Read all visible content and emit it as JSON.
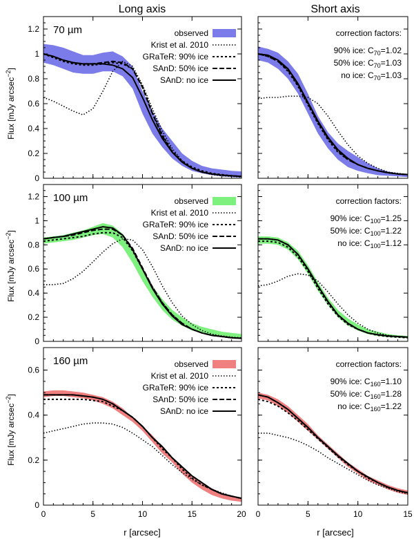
{
  "column_titles": [
    "Long axis",
    "Short axis"
  ],
  "y_label_main": "Flux [mJy arcsec",
  "y_label_sup": "−2",
  "y_label_end": "]",
  "x_label": "r [arcsec]",
  "legend_labels": [
    "observed",
    "Krist et al. 2010",
    "GRaTeR: 90% ice",
    "SAnD: 50% ice",
    "SAnD: no ice"
  ],
  "correction_heading": "correction factors:",
  "chart_data": [
    {
      "type": "line",
      "panel": "long-axis-70",
      "band_label": "70 µm",
      "band_color": "#7b7bea",
      "xlim": [
        0,
        20
      ],
      "ylim": [
        0,
        1.3
      ],
      "xticks": [
        "0",
        "5",
        "10",
        "15",
        "20"
      ],
      "yticks": [
        "0",
        "0.2",
        "0.4",
        "0.6",
        "0.8",
        "1",
        "1.2"
      ],
      "show_xticks": false,
      "x": [
        0,
        1,
        2,
        3,
        4,
        5,
        6,
        7,
        8,
        9,
        10,
        11,
        12,
        13,
        14,
        15,
        16,
        17,
        18,
        19,
        20
      ],
      "observed_low": [
        0.93,
        0.91,
        0.88,
        0.85,
        0.84,
        0.84,
        0.86,
        0.86,
        0.82,
        0.72,
        0.52,
        0.36,
        0.25,
        0.16,
        0.1,
        0.06,
        0.04,
        0.025,
        0.015,
        0.01,
        0.005
      ],
      "observed_high": [
        1.08,
        1.07,
        1.05,
        1.02,
        0.99,
        0.99,
        1.01,
        1.02,
        0.98,
        0.9,
        0.7,
        0.54,
        0.4,
        0.3,
        0.2,
        0.14,
        0.1,
        0.08,
        0.07,
        0.06,
        0.055
      ],
      "series": [
        {
          "name": "Krist et al. 2010",
          "style": "krist",
          "values": [
            0.65,
            0.62,
            0.58,
            0.54,
            0.51,
            0.56,
            0.7,
            0.86,
            0.94,
            0.9,
            0.75,
            0.56,
            0.38,
            0.24,
            0.14,
            0.08,
            0.05,
            0.03,
            0.02,
            0.015,
            0.01
          ]
        },
        {
          "name": "GRaTeR: 90% ice",
          "style": "grater",
          "values": [
            1.0,
            0.97,
            0.94,
            0.92,
            0.91,
            0.91,
            0.92,
            0.93,
            0.92,
            0.88,
            0.74,
            0.53,
            0.35,
            0.22,
            0.14,
            0.09,
            0.06,
            0.04,
            0.03,
            0.02,
            0.015
          ]
        },
        {
          "name": "SAnD: 50% ice",
          "style": "sand50",
          "values": [
            1.0,
            0.98,
            0.95,
            0.93,
            0.92,
            0.92,
            0.93,
            0.94,
            0.93,
            0.88,
            0.73,
            0.52,
            0.34,
            0.21,
            0.13,
            0.08,
            0.05,
            0.035,
            0.025,
            0.02,
            0.015
          ]
        },
        {
          "name": "SAnD: no ice",
          "style": "sandno",
          "values": [
            1.0,
            0.98,
            0.95,
            0.93,
            0.92,
            0.92,
            0.92,
            0.91,
            0.88,
            0.81,
            0.65,
            0.47,
            0.32,
            0.21,
            0.13,
            0.08,
            0.05,
            0.035,
            0.025,
            0.02,
            0.015
          ]
        }
      ]
    },
    {
      "type": "line",
      "panel": "short-axis-70",
      "band_color": "#7b7bea",
      "xlim": [
        0,
        15
      ],
      "ylim": [
        0,
        1.3
      ],
      "xticks": [
        "0",
        "5",
        "10",
        "15"
      ],
      "yticks": [],
      "show_xticks": false,
      "corrections": [
        {
          "pre": "90% ice: C",
          "sub": "70",
          "post": "=1.02"
        },
        {
          "pre": "50% ice: C",
          "sub": "70",
          "post": "=1.03"
        },
        {
          "pre": "no ice: C",
          "sub": "70",
          "post": "=1.03"
        }
      ],
      "x": [
        0,
        1,
        2,
        3,
        4,
        5,
        6,
        7,
        8,
        9,
        10,
        11,
        12,
        13,
        14,
        15
      ],
      "observed_low": [
        0.95,
        0.93,
        0.88,
        0.8,
        0.68,
        0.52,
        0.36,
        0.24,
        0.15,
        0.09,
        0.06,
        0.04,
        0.025,
        0.02,
        0.015,
        0.01
      ],
      "observed_high": [
        1.06,
        1.04,
        1.01,
        0.94,
        0.84,
        0.68,
        0.5,
        0.37,
        0.28,
        0.22,
        0.17,
        0.12,
        0.08,
        0.055,
        0.04,
        0.035
      ],
      "series": [
        {
          "name": "Krist et al. 2010",
          "style": "krist",
          "values": [
            0.64,
            0.65,
            0.65,
            0.66,
            0.66,
            0.65,
            0.6,
            0.5,
            0.38,
            0.27,
            0.18,
            0.12,
            0.08,
            0.05,
            0.04,
            0.03
          ]
        },
        {
          "name": "GRaTeR: 90% ice",
          "style": "grater",
          "values": [
            1.0,
            0.98,
            0.94,
            0.86,
            0.74,
            0.59,
            0.44,
            0.31,
            0.21,
            0.15,
            0.11,
            0.08,
            0.06,
            0.045,
            0.035,
            0.03
          ]
        },
        {
          "name": "SAnD: 50% ice",
          "style": "sand50",
          "values": [
            1.0,
            0.98,
            0.94,
            0.87,
            0.75,
            0.6,
            0.45,
            0.32,
            0.22,
            0.15,
            0.11,
            0.08,
            0.06,
            0.045,
            0.035,
            0.03
          ]
        },
        {
          "name": "SAnD: no ice",
          "style": "sandno",
          "values": [
            1.0,
            0.99,
            0.95,
            0.88,
            0.76,
            0.61,
            0.46,
            0.33,
            0.23,
            0.16,
            0.11,
            0.08,
            0.06,
            0.045,
            0.035,
            0.03
          ]
        }
      ]
    },
    {
      "type": "line",
      "panel": "long-axis-100",
      "band_label": "100 µm",
      "band_color": "#7ef07e",
      "xlim": [
        0,
        20
      ],
      "ylim": [
        0,
        1.3
      ],
      "xticks": [
        "0",
        "5",
        "10",
        "15",
        "20"
      ],
      "yticks": [
        "0",
        "0.2",
        "0.4",
        "0.6",
        "0.8",
        "1",
        "1.2"
      ],
      "show_xticks": false,
      "x": [
        0,
        1,
        2,
        3,
        4,
        5,
        6,
        7,
        8,
        9,
        10,
        11,
        12,
        13,
        14,
        15,
        16,
        17,
        18,
        19,
        20
      ],
      "observed_low": [
        0.81,
        0.82,
        0.83,
        0.84,
        0.86,
        0.88,
        0.89,
        0.86,
        0.78,
        0.65,
        0.5,
        0.37,
        0.26,
        0.18,
        0.13,
        0.09,
        0.07,
        0.05,
        0.04,
        0.03,
        0.02
      ],
      "observed_high": [
        0.86,
        0.87,
        0.88,
        0.9,
        0.92,
        0.95,
        0.98,
        0.96,
        0.89,
        0.76,
        0.6,
        0.46,
        0.35,
        0.26,
        0.2,
        0.15,
        0.12,
        0.1,
        0.08,
        0.07,
        0.06
      ],
      "series": [
        {
          "name": "Krist et al. 2010",
          "style": "krist",
          "values": [
            0.47,
            0.47,
            0.48,
            0.52,
            0.58,
            0.66,
            0.74,
            0.81,
            0.85,
            0.84,
            0.76,
            0.62,
            0.46,
            0.32,
            0.21,
            0.14,
            0.09,
            0.06,
            0.045,
            0.035,
            0.03
          ]
        },
        {
          "name": "GRaTeR: 90% ice",
          "style": "grater",
          "values": [
            0.83,
            0.84,
            0.85,
            0.86,
            0.87,
            0.89,
            0.9,
            0.9,
            0.86,
            0.75,
            0.6,
            0.45,
            0.32,
            0.22,
            0.15,
            0.1,
            0.07,
            0.05,
            0.04,
            0.03,
            0.025
          ]
        },
        {
          "name": "SAnD: 50% ice",
          "style": "sand50",
          "values": [
            0.85,
            0.86,
            0.87,
            0.88,
            0.9,
            0.92,
            0.93,
            0.93,
            0.88,
            0.77,
            0.61,
            0.45,
            0.32,
            0.22,
            0.15,
            0.1,
            0.07,
            0.05,
            0.04,
            0.03,
            0.025
          ]
        },
        {
          "name": "SAnD: no ice",
          "style": "sandno",
          "values": [
            0.85,
            0.86,
            0.87,
            0.89,
            0.91,
            0.93,
            0.95,
            0.94,
            0.88,
            0.76,
            0.6,
            0.44,
            0.31,
            0.21,
            0.14,
            0.1,
            0.07,
            0.05,
            0.04,
            0.03,
            0.025
          ]
        }
      ]
    },
    {
      "type": "line",
      "panel": "short-axis-100",
      "band_color": "#7ef07e",
      "xlim": [
        0,
        15
      ],
      "ylim": [
        0,
        1.3
      ],
      "xticks": [
        "0",
        "5",
        "10",
        "15"
      ],
      "yticks": [],
      "show_xticks": false,
      "corrections": [
        {
          "pre": "90% ice: C",
          "sub": "100",
          "post": "=1.25"
        },
        {
          "pre": "50% ice: C",
          "sub": "100",
          "post": "=1.22"
        },
        {
          "pre": "no ice: C",
          "sub": "100",
          "post": "=1.12"
        }
      ],
      "x": [
        0,
        1,
        2,
        3,
        4,
        5,
        6,
        7,
        8,
        9,
        10,
        11,
        12,
        13,
        14,
        15
      ],
      "observed_low": [
        0.81,
        0.81,
        0.8,
        0.76,
        0.68,
        0.56,
        0.42,
        0.3,
        0.2,
        0.13,
        0.09,
        0.06,
        0.045,
        0.035,
        0.03,
        0.025
      ],
      "observed_high": [
        0.87,
        0.87,
        0.86,
        0.82,
        0.75,
        0.63,
        0.49,
        0.36,
        0.26,
        0.19,
        0.14,
        0.1,
        0.08,
        0.06,
        0.05,
        0.045
      ],
      "series": [
        {
          "name": "Krist et al. 2010",
          "style": "krist",
          "values": [
            0.46,
            0.47,
            0.5,
            0.54,
            0.56,
            0.55,
            0.5,
            0.41,
            0.31,
            0.22,
            0.15,
            0.1,
            0.07,
            0.05,
            0.04,
            0.035
          ]
        },
        {
          "name": "GRaTeR: 90% ice",
          "style": "grater",
          "values": [
            0.83,
            0.83,
            0.82,
            0.78,
            0.7,
            0.58,
            0.44,
            0.31,
            0.21,
            0.14,
            0.1,
            0.07,
            0.05,
            0.04,
            0.035,
            0.03
          ]
        },
        {
          "name": "SAnD: 50% ice",
          "style": "sand50",
          "values": [
            0.85,
            0.85,
            0.84,
            0.8,
            0.72,
            0.6,
            0.46,
            0.33,
            0.22,
            0.15,
            0.1,
            0.07,
            0.055,
            0.045,
            0.04,
            0.035
          ]
        },
        {
          "name": "SAnD: no ice",
          "style": "sandno",
          "values": [
            0.85,
            0.85,
            0.84,
            0.8,
            0.72,
            0.6,
            0.46,
            0.33,
            0.22,
            0.15,
            0.1,
            0.07,
            0.055,
            0.045,
            0.04,
            0.035
          ]
        }
      ]
    },
    {
      "type": "line",
      "panel": "long-axis-160",
      "band_label": "160 µm",
      "band_color": "#f08080",
      "xlim": [
        0,
        20
      ],
      "ylim": [
        0,
        0.7
      ],
      "xticks": [
        "0",
        "5",
        "10",
        "15",
        "20"
      ],
      "yticks": [
        "0",
        "0.2",
        "0.4",
        "0.6"
      ],
      "show_xticks": true,
      "x": [
        0,
        1,
        2,
        3,
        4,
        5,
        6,
        7,
        8,
        9,
        10,
        11,
        12,
        13,
        14,
        15,
        16,
        17,
        18,
        19,
        20
      ],
      "observed_low": [
        0.48,
        0.485,
        0.485,
        0.48,
        0.475,
        0.465,
        0.45,
        0.43,
        0.4,
        0.37,
        0.33,
        0.28,
        0.23,
        0.19,
        0.14,
        0.1,
        0.07,
        0.045,
        0.03,
        0.02,
        0.015
      ],
      "observed_high": [
        0.505,
        0.51,
        0.51,
        0.505,
        0.5,
        0.49,
        0.48,
        0.46,
        0.43,
        0.39,
        0.35,
        0.31,
        0.26,
        0.21,
        0.17,
        0.13,
        0.1,
        0.075,
        0.055,
        0.04,
        0.035
      ],
      "series": [
        {
          "name": "Krist et al. 2010",
          "style": "krist",
          "values": [
            0.32,
            0.33,
            0.34,
            0.35,
            0.36,
            0.365,
            0.365,
            0.36,
            0.345,
            0.32,
            0.29,
            0.26,
            0.22,
            0.18,
            0.145,
            0.115,
            0.09,
            0.07,
            0.055,
            0.04,
            0.03
          ]
        },
        {
          "name": "GRaTeR: 90% ice",
          "style": "grater",
          "values": [
            0.47,
            0.47,
            0.47,
            0.47,
            0.47,
            0.465,
            0.46,
            0.44,
            0.42,
            0.39,
            0.35,
            0.3,
            0.25,
            0.21,
            0.16,
            0.12,
            0.09,
            0.07,
            0.05,
            0.04,
            0.03
          ]
        },
        {
          "name": "SAnD: 50% ice",
          "style": "sand50",
          "values": [
            0.49,
            0.49,
            0.49,
            0.49,
            0.485,
            0.48,
            0.47,
            0.45,
            0.42,
            0.39,
            0.35,
            0.3,
            0.26,
            0.21,
            0.17,
            0.13,
            0.1,
            0.07,
            0.05,
            0.04,
            0.03
          ]
        },
        {
          "name": "SAnD: no ice",
          "style": "sandno",
          "values": [
            0.49,
            0.49,
            0.49,
            0.49,
            0.485,
            0.48,
            0.47,
            0.45,
            0.42,
            0.39,
            0.35,
            0.3,
            0.26,
            0.21,
            0.17,
            0.13,
            0.1,
            0.07,
            0.05,
            0.04,
            0.03
          ]
        }
      ]
    },
    {
      "type": "line",
      "panel": "short-axis-160",
      "band_color": "#f08080",
      "xlim": [
        0,
        15
      ],
      "ylim": [
        0,
        0.7
      ],
      "xticks": [
        "0",
        "5",
        "10",
        "15"
      ],
      "yticks": [],
      "show_xticks": true,
      "corrections": [
        {
          "pre": "90% ice: C",
          "sub": "160",
          "post": "=1.10"
        },
        {
          "pre": "50% ice: C",
          "sub": "160",
          "post": "=1.28"
        },
        {
          "pre": "no ice: C",
          "sub": "160",
          "post": "=1.22"
        }
      ],
      "x": [
        0,
        1,
        2,
        3,
        4,
        5,
        6,
        7,
        8,
        9,
        10,
        11,
        12,
        13,
        14,
        15
      ],
      "observed_low": [
        0.475,
        0.465,
        0.44,
        0.41,
        0.37,
        0.33,
        0.29,
        0.25,
        0.21,
        0.17,
        0.14,
        0.11,
        0.09,
        0.07,
        0.055,
        0.045
      ],
      "observed_high": [
        0.5,
        0.49,
        0.47,
        0.44,
        0.4,
        0.36,
        0.31,
        0.27,
        0.23,
        0.19,
        0.16,
        0.13,
        0.11,
        0.09,
        0.075,
        0.065
      ],
      "series": [
        {
          "name": "Krist et al. 2010",
          "style": "krist",
          "values": [
            0.32,
            0.32,
            0.31,
            0.3,
            0.285,
            0.265,
            0.24,
            0.21,
            0.185,
            0.16,
            0.135,
            0.11,
            0.09,
            0.075,
            0.06,
            0.05
          ]
        },
        {
          "name": "GRaTeR: 90% ice",
          "style": "grater",
          "values": [
            0.47,
            0.46,
            0.44,
            0.41,
            0.375,
            0.335,
            0.295,
            0.255,
            0.215,
            0.18,
            0.15,
            0.12,
            0.1,
            0.08,
            0.065,
            0.055
          ]
        },
        {
          "name": "SAnD: 50% ice",
          "style": "sand50",
          "values": [
            0.49,
            0.48,
            0.455,
            0.425,
            0.385,
            0.345,
            0.3,
            0.26,
            0.22,
            0.185,
            0.15,
            0.125,
            0.1,
            0.08,
            0.065,
            0.055
          ]
        },
        {
          "name": "SAnD: no ice",
          "style": "sandno",
          "values": [
            0.49,
            0.48,
            0.455,
            0.425,
            0.385,
            0.345,
            0.3,
            0.26,
            0.22,
            0.185,
            0.15,
            0.125,
            0.1,
            0.08,
            0.065,
            0.055
          ]
        }
      ]
    }
  ]
}
